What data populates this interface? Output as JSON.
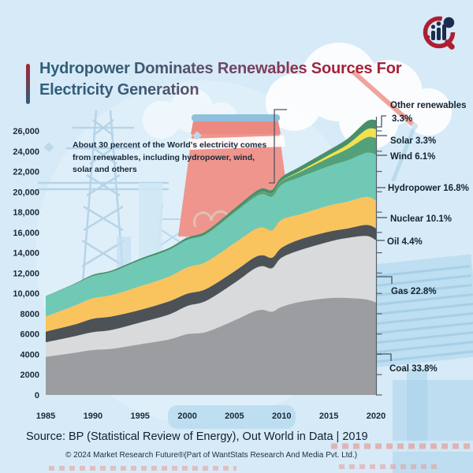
{
  "header": {
    "title_line1": "Hydropower Dominates Renewables Sources For",
    "title_line2": "Electricity Generation"
  },
  "annotation": "About 30 percent of the World's electricity comes from renewables, including hydropower, wind, solar and others",
  "footer": {
    "source": "Source: BP (Statistical Review of Energy), Out World in Data | 2019",
    "copyright": "© 2024 Market Research Future®(Part of WantStats Research And Media Pvt. Ltd.)"
  },
  "colors": {
    "background": "#d7eaf7",
    "title_teal": "#2b607b",
    "title_crimson": "#a92038",
    "axis_text": "#1b2a35",
    "leader_line": "#4a5660"
  },
  "chart_data": {
    "type": "area",
    "stacked": true,
    "title": "Hydropower Dominates Renewables Sources For Electricity Generation",
    "xlabel": "",
    "ylabel": "",
    "legend_position": "right",
    "grid": false,
    "ylim": [
      0,
      26000
    ],
    "x": [
      1985,
      1988,
      1990,
      1992,
      1995,
      1998,
      2000,
      2002,
      2005,
      2007,
      2008,
      2009,
      2010,
      2012,
      2015,
      2017,
      2019,
      2020
    ],
    "xticks": [
      1985,
      1990,
      1995,
      2000,
      2005,
      2010,
      2015,
      2020
    ],
    "ytick_values": [
      0,
      2000,
      4000,
      6000,
      8000,
      10000,
      12000,
      14000,
      16000,
      18000,
      20000,
      22000,
      24000,
      26000
    ],
    "ytick_labels": [
      "0",
      "2000",
      "4000",
      "6000",
      "8000",
      "10,000",
      "12,000",
      "14,000",
      "16,000",
      "18,000",
      "20,000",
      "22,000",
      "24,000",
      "26,000"
    ],
    "series": [
      {
        "name": "Coal",
        "pct": "33.8%",
        "color": "#9b9da0",
        "values": [
          3750,
          4150,
          4430,
          4550,
          4990,
          5450,
          5990,
          6200,
          7340,
          8200,
          8380,
          8200,
          8670,
          9170,
          9540,
          9550,
          9400,
          9100
        ]
      },
      {
        "name": "Gas",
        "pct": "22.8%",
        "color": "#d8dadb",
        "values": [
          1440,
          1620,
          1750,
          1850,
          2145,
          2450,
          2770,
          3070,
          3690,
          4170,
          4300,
          4290,
          4850,
          5100,
          5540,
          5910,
          6250,
          6130
        ]
      },
      {
        "name": "Oil",
        "pct": "4.4%",
        "color": "#4d5257",
        "values": [
          1040,
          1150,
          1330,
          1330,
          1240,
          1300,
          1210,
          1170,
          1150,
          1100,
          1070,
          1030,
          980,
          1060,
          990,
          940,
          1100,
          1180
        ]
      },
      {
        "name": "Nuclear",
        "pct": "10.1%",
        "color": "#f9c35e",
        "values": [
          1490,
          1850,
          2010,
          2110,
          2330,
          2430,
          2590,
          2660,
          2770,
          2750,
          2740,
          2700,
          2770,
          2460,
          2570,
          2640,
          2750,
          2720
        ]
      },
      {
        "name": "Hydropower",
        "pct": "16.8%",
        "color": "#6fc9b4",
        "values": [
          1980,
          2100,
          2190,
          2280,
          2550,
          2620,
          2700,
          2740,
          3020,
          3160,
          3290,
          3330,
          3440,
          3670,
          3880,
          4060,
          4350,
          4520
        ]
      },
      {
        "name": "Wind",
        "pct": "6.1%",
        "color": "#53a17a",
        "values": [
          0,
          2,
          4,
          5,
          8,
          16,
          31,
          52,
          104,
          171,
          221,
          276,
          342,
          521,
          831,
          1130,
          1500,
          1640
        ]
      },
      {
        "name": "Solar",
        "pct": "3.3%",
        "color": "#f2e14d",
        "values": [
          0,
          0,
          0,
          0,
          1,
          1,
          1,
          2,
          4,
          7,
          12,
          20,
          32,
          97,
          256,
          445,
          780,
          890
        ]
      },
      {
        "name": "Other renewables",
        "pct": "3.3%",
        "color": "#47906b",
        "values": [
          30,
          60,
          125,
          135,
          155,
          180,
          210,
          230,
          280,
          310,
          330,
          350,
          370,
          430,
          500,
          570,
          800,
          890
        ]
      }
    ]
  }
}
